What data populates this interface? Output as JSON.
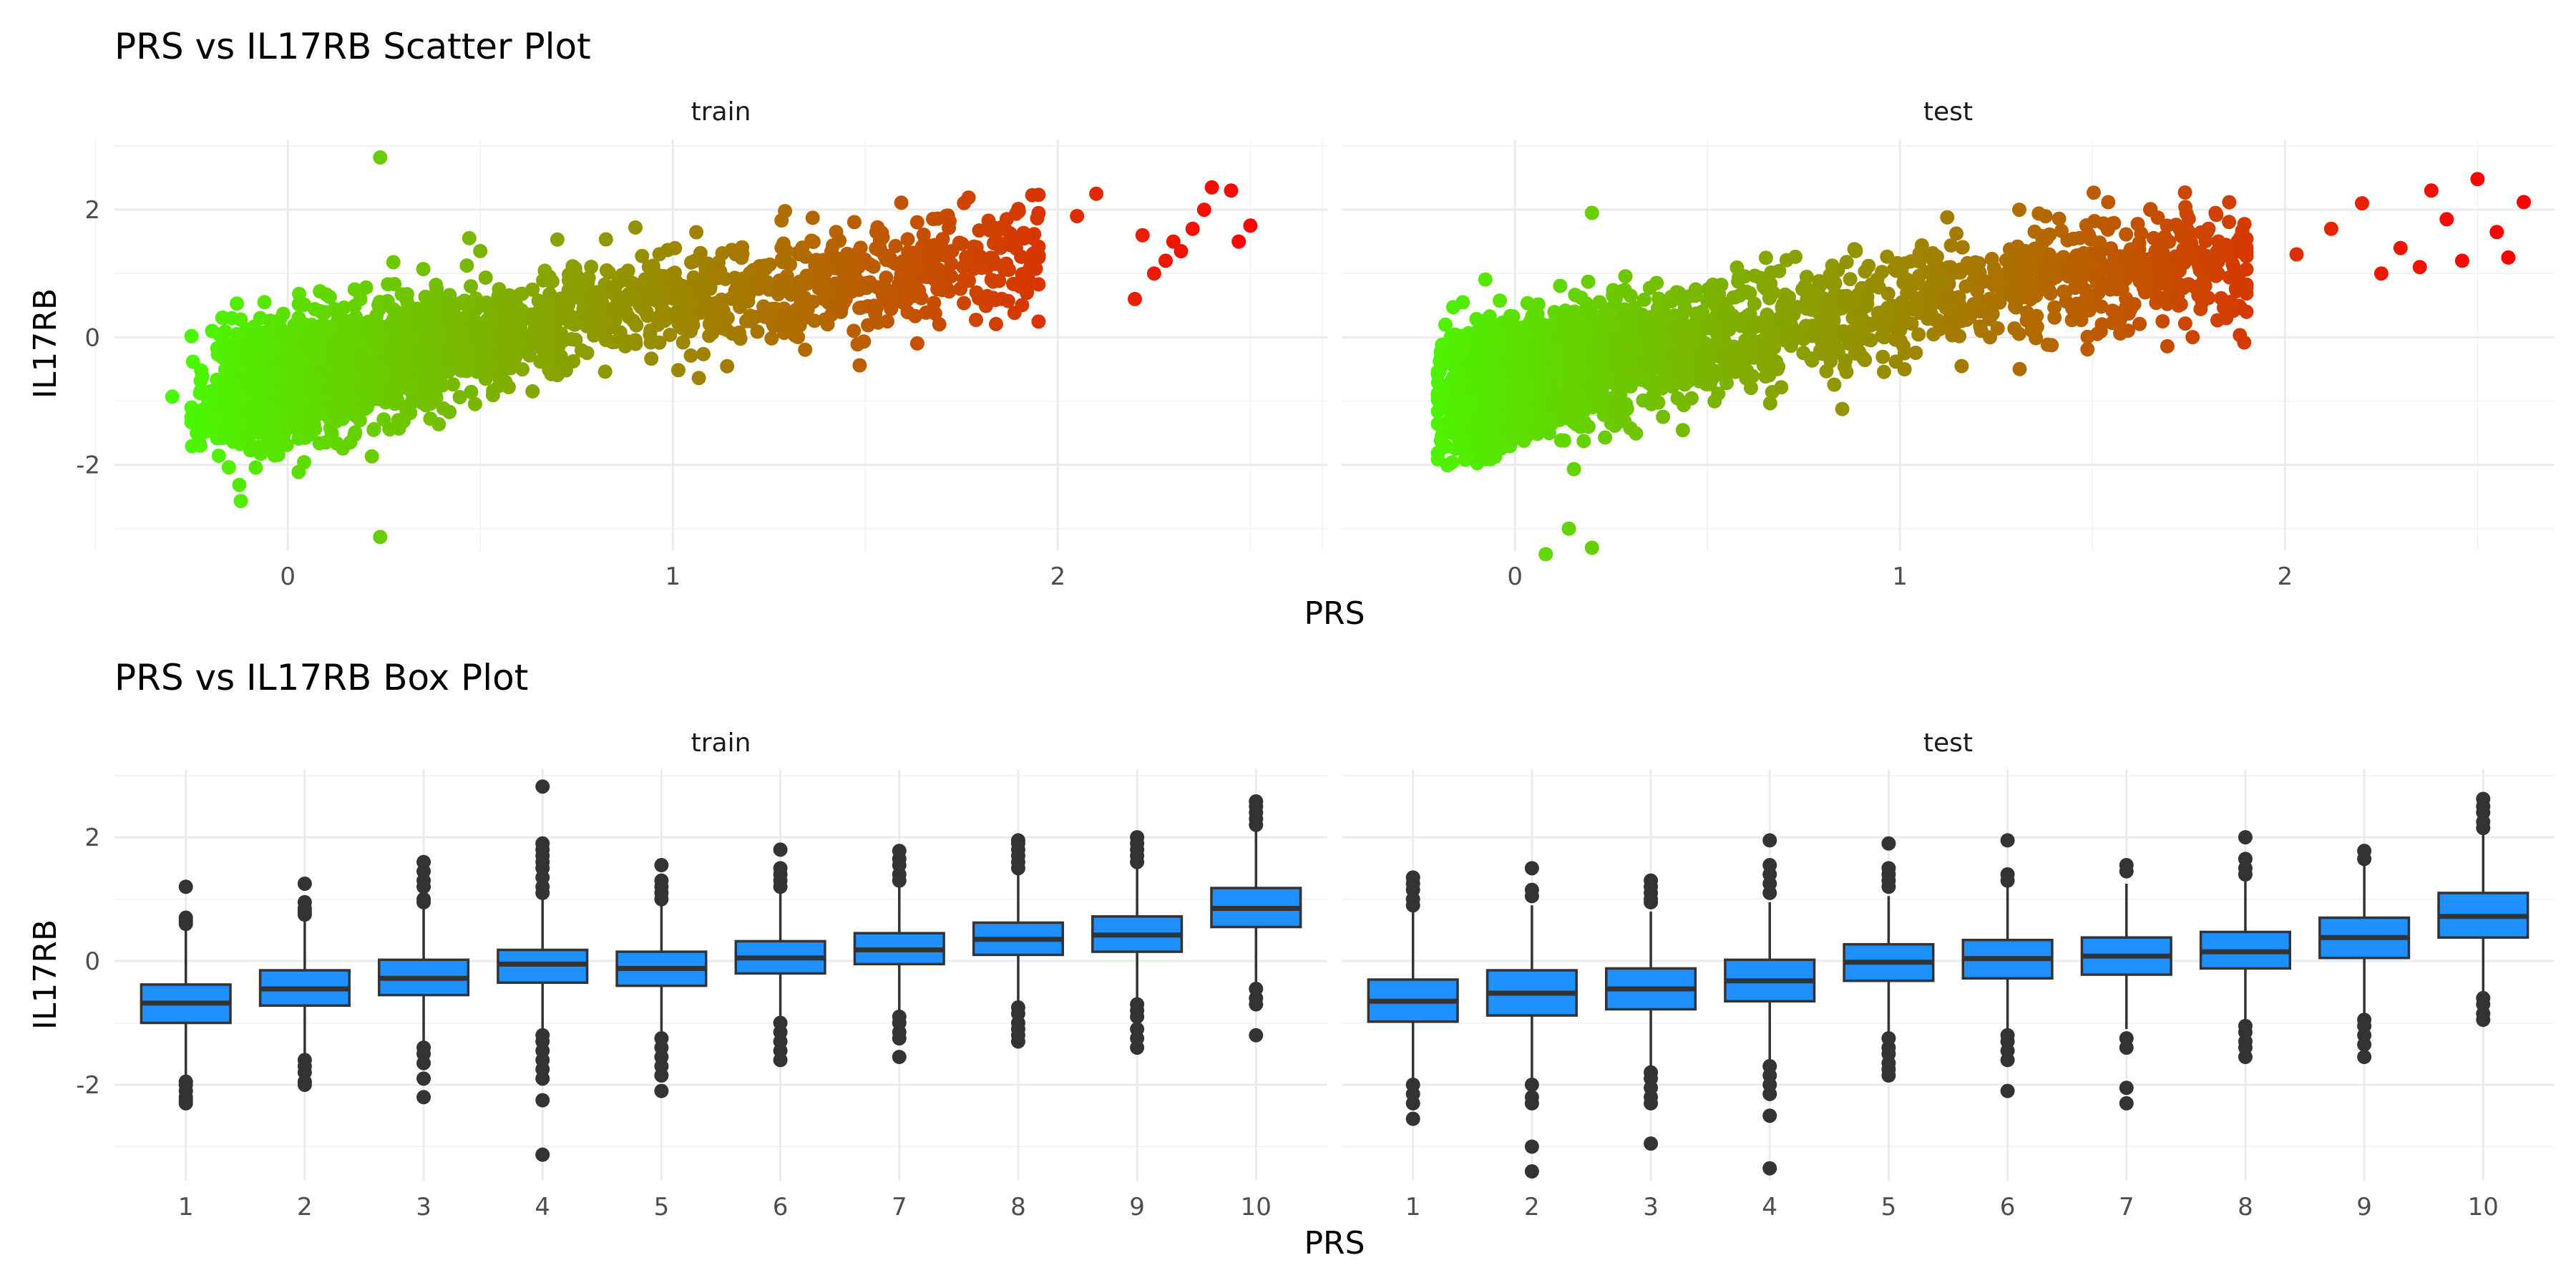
{
  "chart_data": [
    {
      "type": "scatter",
      "title": "PRS vs IL17RB Scatter Plot",
      "xlabel": "PRS",
      "ylabel": "IL17RB",
      "xlim": [
        -0.45,
        2.7
      ],
      "ylim": [
        -3.35,
        3.1
      ],
      "x_ticks": [
        0,
        1,
        2
      ],
      "y_ticks": [
        -2,
        0,
        2
      ],
      "x_tick_labels": [
        "0",
        "1",
        "2"
      ],
      "y_tick_labels": [
        "-2",
        "0",
        "2"
      ],
      "grid": true,
      "color_scale": {
        "low": "#44ff00",
        "high": "#ff0000",
        "domain": [
          -0.35,
          2.55
        ]
      },
      "facets": [
        {
          "label": "train",
          "trend": {
            "x": [
              -0.3,
              0.0,
              0.5,
              1.0,
              1.5,
              1.9
            ],
            "y": [
              -1.0,
              -0.7,
              0.0,
              0.55,
              0.95,
              1.25
            ]
          },
          "x_range": [
            -0.25,
            1.95
          ],
          "spread_sd": 0.45,
          "outliers": [
            {
              "x": 0.24,
              "y": 2.82
            },
            {
              "x": 0.24,
              "y": -3.13
            },
            {
              "x": -0.3,
              "y": -0.93
            },
            {
              "x": 2.22,
              "y": 1.6
            },
            {
              "x": 2.3,
              "y": 1.5
            },
            {
              "x": 2.35,
              "y": 1.7
            },
            {
              "x": 2.4,
              "y": 2.35
            },
            {
              "x": 2.45,
              "y": 2.3
            },
            {
              "x": 2.47,
              "y": 1.5
            },
            {
              "x": 2.5,
              "y": 1.75
            },
            {
              "x": 2.2,
              "y": 0.6
            },
            {
              "x": 2.25,
              "y": 1.0
            },
            {
              "x": 2.1,
              "y": 2.25
            },
            {
              "x": 2.05,
              "y": 1.9
            },
            {
              "x": 2.38,
              "y": 2.0
            },
            {
              "x": 2.32,
              "y": 1.35
            },
            {
              "x": 2.28,
              "y": 1.2
            }
          ]
        },
        {
          "label": "test",
          "trend": {
            "x": [
              -0.2,
              0.0,
              0.5,
              1.0,
              1.5,
              1.9
            ],
            "y": [
              -0.95,
              -0.7,
              0.0,
              0.5,
              0.95,
              1.2
            ]
          },
          "x_range": [
            -0.2,
            1.9
          ],
          "spread_sd": 0.45,
          "outliers": [
            {
              "x": 0.08,
              "y": -3.4
            },
            {
              "x": 0.14,
              "y": -3.0
            },
            {
              "x": 0.2,
              "y": -3.3
            },
            {
              "x": 0.2,
              "y": 1.95
            },
            {
              "x": 2.03,
              "y": 1.3
            },
            {
              "x": 2.12,
              "y": 1.7
            },
            {
              "x": 2.2,
              "y": 2.1
            },
            {
              "x": 2.25,
              "y": 1.0
            },
            {
              "x": 2.3,
              "y": 1.4
            },
            {
              "x": 2.35,
              "y": 1.1
            },
            {
              "x": 2.38,
              "y": 2.3
            },
            {
              "x": 2.42,
              "y": 1.85
            },
            {
              "x": 2.46,
              "y": 1.2
            },
            {
              "x": 2.5,
              "y": 2.48
            },
            {
              "x": 2.55,
              "y": 1.65
            },
            {
              "x": 2.58,
              "y": 1.25
            },
            {
              "x": 2.62,
              "y": 2.12
            },
            {
              "x": 1.65,
              "y": 2.0
            }
          ]
        }
      ]
    },
    {
      "type": "box",
      "title": "PRS vs IL17RB Box Plot",
      "xlabel": "PRS",
      "ylabel": "IL17RB",
      "ylim": [
        -3.55,
        3.1
      ],
      "y_ticks": [
        -2,
        0,
        2
      ],
      "y_tick_labels": [
        "-2",
        "0",
        "2"
      ],
      "categories": [
        "1",
        "2",
        "3",
        "4",
        "5",
        "6",
        "7",
        "8",
        "9",
        "10"
      ],
      "grid": true,
      "fill": "#1e90ff",
      "facets": [
        {
          "label": "train",
          "boxes": [
            {
              "q1": -1.0,
              "median": -0.68,
              "q3": -0.38,
              "whisker_low": -1.9,
              "whisker_high": 0.55,
              "outliers": [
                1.2,
                0.65,
                0.6,
                0.7,
                -2.0,
                -2.1,
                -2.2,
                -2.3,
                -2.25,
                -1.95
              ]
            },
            {
              "q1": -0.72,
              "median": -0.45,
              "q3": -0.15,
              "whisker_low": -1.5,
              "whisker_high": 0.7,
              "outliers": [
                1.25,
                0.95,
                0.85,
                0.8,
                0.75,
                -1.6,
                -1.7,
                -1.8,
                -1.95,
                -2.0
              ]
            },
            {
              "q1": -0.55,
              "median": -0.28,
              "q3": 0.02,
              "whisker_low": -1.35,
              "whisker_high": 0.85,
              "outliers": [
                1.6,
                1.45,
                1.3,
                1.2,
                1.0,
                0.95,
                -1.4,
                -1.5,
                -1.65,
                -1.9,
                -2.2
              ]
            },
            {
              "q1": -0.35,
              "median": -0.05,
              "q3": 0.18,
              "whisker_low": -1.1,
              "whisker_high": 1.0,
              "outliers": [
                2.82,
                1.9,
                1.8,
                1.7,
                1.6,
                1.5,
                1.35,
                1.2,
                1.1,
                -1.2,
                -1.3,
                -1.45,
                -1.6,
                -1.75,
                -1.9,
                -2.25,
                -3.13
              ]
            },
            {
              "q1": -0.4,
              "median": -0.12,
              "q3": 0.15,
              "whisker_low": -1.15,
              "whisker_high": 0.9,
              "outliers": [
                1.55,
                1.3,
                1.2,
                1.1,
                1.0,
                -1.25,
                -1.4,
                -1.55,
                -1.7,
                -1.85,
                -2.1
              ]
            },
            {
              "q1": -0.2,
              "median": 0.05,
              "q3": 0.32,
              "whisker_low": -0.95,
              "whisker_high": 1.1,
              "outliers": [
                1.8,
                1.5,
                1.4,
                1.3,
                1.2,
                -1.0,
                -1.15,
                -1.3,
                -1.45,
                -1.6
              ]
            },
            {
              "q1": -0.05,
              "median": 0.18,
              "q3": 0.45,
              "whisker_low": -0.8,
              "whisker_high": 1.2,
              "outliers": [
                1.78,
                1.65,
                1.55,
                1.4,
                1.3,
                -0.9,
                -1.0,
                -1.15,
                -1.25,
                -1.55
              ]
            },
            {
              "q1": 0.1,
              "median": 0.35,
              "q3": 0.62,
              "whisker_low": -0.7,
              "whisker_high": 1.4,
              "outliers": [
                1.95,
                1.9,
                1.8,
                1.7,
                1.6,
                1.5,
                -0.75,
                -0.85,
                -1.0,
                -1.1,
                -1.2,
                -1.3
              ]
            },
            {
              "q1": 0.15,
              "median": 0.42,
              "q3": 0.72,
              "whisker_low": -0.65,
              "whisker_high": 1.5,
              "outliers": [
                2.0,
                1.9,
                1.8,
                1.7,
                1.6,
                -0.7,
                -0.8,
                -0.9,
                -1.1,
                -1.25,
                -1.4
              ]
            },
            {
              "q1": 0.55,
              "median": 0.85,
              "q3": 1.18,
              "whisker_low": -0.4,
              "whisker_high": 2.1,
              "outliers": [
                2.58,
                2.5,
                2.4,
                2.3,
                2.2,
                -0.45,
                -0.6,
                -0.7,
                -1.2
              ]
            }
          ]
        },
        {
          "label": "test",
          "boxes": [
            {
              "q1": -0.98,
              "median": -0.65,
              "q3": -0.3,
              "whisker_low": -1.95,
              "whisker_high": 0.8,
              "outliers": [
                1.35,
                1.25,
                1.15,
                1.0,
                0.9,
                -2.0,
                -2.15,
                -2.3,
                -2.55
              ]
            },
            {
              "q1": -0.88,
              "median": -0.52,
              "q3": -0.15,
              "whisker_low": -1.9,
              "whisker_high": 0.9,
              "outliers": [
                1.5,
                1.15,
                1.05,
                -2.0,
                -2.2,
                -2.3,
                -3.0,
                -3.4
              ]
            },
            {
              "q1": -0.78,
              "median": -0.45,
              "q3": -0.12,
              "whisker_low": -1.7,
              "whisker_high": 0.8,
              "outliers": [
                1.3,
                1.2,
                1.1,
                1.0,
                0.95,
                -1.8,
                -1.9,
                -2.05,
                -2.2,
                -2.3,
                -2.95
              ]
            },
            {
              "q1": -0.65,
              "median": -0.32,
              "q3": 0.02,
              "whisker_low": -1.6,
              "whisker_high": 0.95,
              "outliers": [
                1.95,
                1.55,
                1.4,
                1.25,
                1.1,
                -1.7,
                -1.85,
                -2.0,
                -2.15,
                -2.5,
                -3.35
              ]
            },
            {
              "q1": -0.32,
              "median": -0.02,
              "q3": 0.27,
              "whisker_low": -1.2,
              "whisker_high": 1.05,
              "outliers": [
                1.9,
                1.5,
                1.4,
                1.3,
                1.2,
                -1.25,
                -1.4,
                -1.5,
                -1.65,
                -1.75,
                -1.85
              ]
            },
            {
              "q1": -0.28,
              "median": 0.04,
              "q3": 0.34,
              "whisker_low": -1.15,
              "whisker_high": 1.2,
              "outliers": [
                1.95,
                1.4,
                1.3,
                -1.2,
                -1.3,
                -1.45,
                -1.6,
                -2.1
              ]
            },
            {
              "q1": -0.22,
              "median": 0.08,
              "q3": 0.38,
              "whisker_low": -1.1,
              "whisker_high": 1.25,
              "outliers": [
                1.55,
                1.45,
                -1.25,
                -1.4,
                -2.05,
                -2.3
              ]
            },
            {
              "q1": -0.12,
              "median": 0.15,
              "q3": 0.47,
              "whisker_low": -1.0,
              "whisker_high": 1.35,
              "outliers": [
                2.0,
                1.65,
                1.5,
                1.4,
                -1.05,
                -1.15,
                -1.3,
                -1.4,
                -1.55
              ]
            },
            {
              "q1": 0.05,
              "median": 0.38,
              "q3": 0.7,
              "whisker_low": -0.9,
              "whisker_high": 1.55,
              "outliers": [
                1.78,
                1.65,
                -0.95,
                -1.05,
                -1.2,
                -1.35,
                -1.55
              ]
            },
            {
              "q1": 0.38,
              "median": 0.72,
              "q3": 1.1,
              "whisker_low": -0.55,
              "whisker_high": 2.05,
              "outliers": [
                2.62,
                2.5,
                2.4,
                2.25,
                2.15,
                -0.6,
                -0.7,
                -0.85,
                -0.95
              ]
            }
          ]
        }
      ]
    }
  ]
}
